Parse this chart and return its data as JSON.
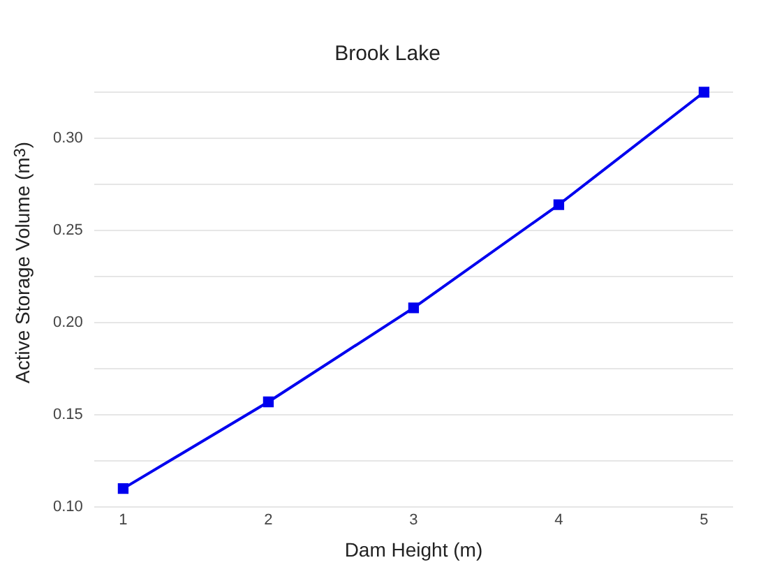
{
  "chart_data": {
    "type": "line",
    "title": "Brook Lake",
    "xlabel": "Dam Height (m)",
    "ylabel": "Active Storage Volume (m$^{3}$)",
    "x": [
      1,
      2,
      3,
      4,
      5
    ],
    "series": [
      {
        "color": "#0000ee",
        "values": [
          0.11,
          0.157,
          0.208,
          0.264,
          0.325
        ]
      }
    ],
    "xlim": [
      0.8,
      5.2
    ],
    "xticks": [
      1,
      2,
      3,
      4,
      5
    ],
    "ylim": [
      0.1,
      0.325
    ],
    "yticks": [
      {
        "value": 0.1,
        "label": "0.10"
      },
      {
        "value": 0.125,
        "label": null
      },
      {
        "value": 0.15,
        "label": "0.15"
      },
      {
        "value": 0.175,
        "label": null
      },
      {
        "value": 0.2,
        "label": "0.20"
      },
      {
        "value": 0.225,
        "label": null
      },
      {
        "value": 0.25,
        "label": "0.25"
      },
      {
        "value": 0.275,
        "label": null
      },
      {
        "value": 0.3,
        "label": "0.30"
      },
      {
        "value": 0.325,
        "label": null
      }
    ],
    "grid": "y",
    "legend": false,
    "marker": "square",
    "line_style": "solid"
  }
}
